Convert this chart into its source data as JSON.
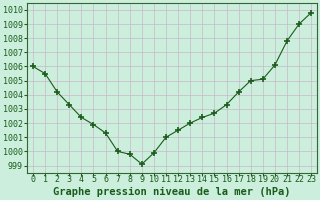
{
  "x": [
    0,
    1,
    2,
    3,
    4,
    5,
    6,
    7,
    8,
    9,
    10,
    11,
    12,
    13,
    14,
    15,
    16,
    17,
    18,
    19,
    20,
    21,
    22,
    23
  ],
  "y": [
    1006.0,
    1005.5,
    1004.2,
    1003.3,
    1002.4,
    1001.9,
    1001.3,
    1000.0,
    999.8,
    999.1,
    999.9,
    1001.0,
    1001.5,
    1002.0,
    1002.4,
    1002.7,
    1003.3,
    1004.2,
    1005.0,
    1005.1,
    1006.1,
    1007.8,
    1009.0,
    1009.8
  ],
  "ylim": [
    998.5,
    1010.5
  ],
  "yticks": [
    999,
    1000,
    1001,
    1002,
    1003,
    1004,
    1005,
    1006,
    1007,
    1008,
    1009,
    1010
  ],
  "xlim": [
    -0.5,
    23.5
  ],
  "xticks": [
    0,
    1,
    2,
    3,
    4,
    5,
    6,
    7,
    8,
    9,
    10,
    11,
    12,
    13,
    14,
    15,
    16,
    17,
    18,
    19,
    20,
    21,
    22,
    23
  ],
  "xlabel": "Graphe pression niveau de la mer (hPa)",
  "line_color": "#1a5c1a",
  "marker": "+",
  "marker_size": 5,
  "marker_lw": 1.2,
  "line_width": 0.8,
  "bg_color": "#cceedd",
  "plot_bg_color": "#cceedd",
  "grid_color": "#c8b8c8",
  "tick_label_color": "#1a5c1a",
  "xlabel_color": "#1a5c1a",
  "xlabel_fontsize": 7.5,
  "tick_fontsize": 6,
  "spine_color": "#336633"
}
